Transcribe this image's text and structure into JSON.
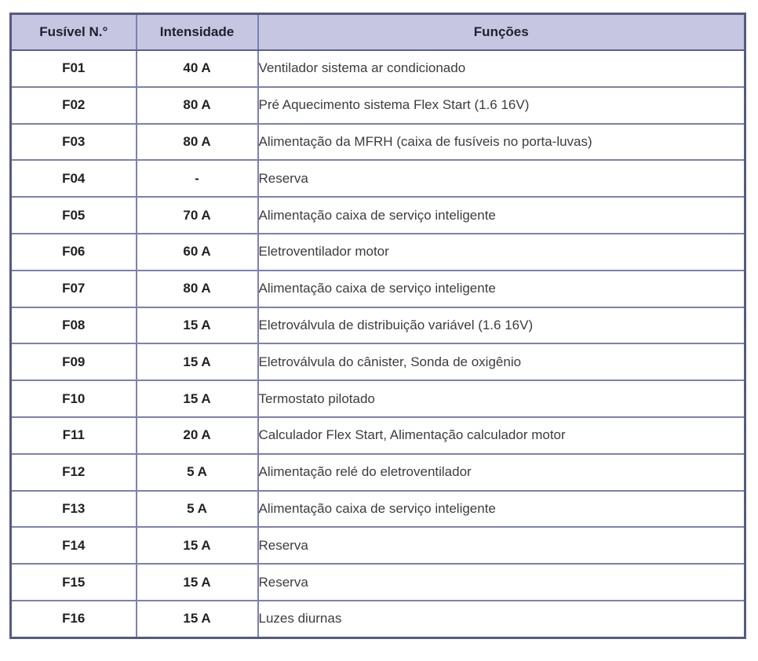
{
  "colors": {
    "header_bg": "#c6c6e3",
    "grid_line": "#7c81ad",
    "outer_border": "#565a7e",
    "header_separator": "#5b6088",
    "header_text": "#1f1f2e",
    "cell_text": "#222226",
    "function_text": "#3c3c40",
    "page_bg": "#ffffff"
  },
  "table": {
    "columns": [
      {
        "label": "Fusível N.°"
      },
      {
        "label": "Intensidade"
      },
      {
        "label": "Funções"
      }
    ],
    "rows": [
      {
        "fuse": "F01",
        "amp": "40 A",
        "func": "Ventilador sistema ar condicionado"
      },
      {
        "fuse": "F02",
        "amp": "80 A",
        "func": "Pré Aquecimento sistema Flex Start (1.6 16V)"
      },
      {
        "fuse": "F03",
        "amp": "80 A",
        "func": "Alimentação da MFRH (caixa de fusíveis no porta-luvas)"
      },
      {
        "fuse": "F04",
        "amp": "-",
        "func": "Reserva"
      },
      {
        "fuse": "F05",
        "amp": "70 A",
        "func": "Alimentação caixa de serviço inteligente"
      },
      {
        "fuse": "F06",
        "amp": "60 A",
        "func": "Eletroventilador motor"
      },
      {
        "fuse": "F07",
        "amp": "80 A",
        "func": "Alimentação caixa de serviço inteligente"
      },
      {
        "fuse": "F08",
        "amp": "15 A",
        "func": "Eletroválvula de distribuição variável (1.6 16V)"
      },
      {
        "fuse": "F09",
        "amp": "15 A",
        "func": "Eletroválvula do cânister, Sonda de oxigênio"
      },
      {
        "fuse": "F10",
        "amp": "15 A",
        "func": "Termostato pilotado"
      },
      {
        "fuse": "F11",
        "amp": "20 A",
        "func": "Calculador Flex Start, Alimentação calculador motor"
      },
      {
        "fuse": "F12",
        "amp": "5 A",
        "func": "Alimentação relé do eletroventilador"
      },
      {
        "fuse": "F13",
        "amp": "5 A",
        "func": "Alimentação caixa de serviço inteligente"
      },
      {
        "fuse": "F14",
        "amp": "15 A",
        "func": "Reserva"
      },
      {
        "fuse": "F15",
        "amp": "15 A",
        "func": "Reserva"
      },
      {
        "fuse": "F16",
        "amp": "15 A",
        "func": "Luzes diurnas"
      }
    ]
  }
}
